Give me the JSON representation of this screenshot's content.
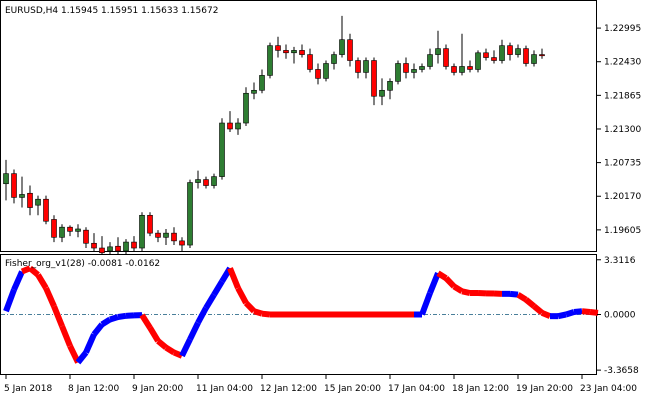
{
  "chart_data": [
    {
      "type": "candlestick",
      "title": "EURUSD,H4  1.15945 1.15951 1.15633 1.15672",
      "symbol": "EURUSD,H4",
      "ohlc_readout": [
        "1.15945",
        "1.15951",
        "1.15633",
        "1.15672"
      ],
      "y_ticks": [
        "1.22995",
        "1.22430",
        "1.21865",
        "1.21300",
        "1.20735",
        "1.20170",
        "1.19605"
      ],
      "ylim": [
        1.1925,
        1.2345
      ],
      "up_color": "#2e7d32",
      "down_color": "#ff0000",
      "candles": [
        [
          1.2038,
          1.2078,
          1.201,
          1.2055
        ],
        [
          1.2055,
          1.2062,
          1.2005,
          1.2015
        ],
        [
          1.2015,
          1.205,
          1.1998,
          1.202
        ],
        [
          1.2022,
          1.2035,
          1.1985,
          1.1998
        ],
        [
          1.2002,
          1.2018,
          1.1985,
          1.2012
        ],
        [
          1.2012,
          1.2018,
          1.197,
          1.1975
        ],
        [
          1.1978,
          1.1985,
          1.194,
          1.1948
        ],
        [
          1.1948,
          1.197,
          1.194,
          1.1965
        ],
        [
          1.1965,
          1.1968,
          1.195,
          1.1958
        ],
        [
          1.1958,
          1.197,
          1.1948,
          1.1962
        ],
        [
          1.196,
          1.1965,
          1.193,
          1.1938
        ],
        [
          1.1938,
          1.1955,
          1.1925,
          1.193
        ],
        [
          1.193,
          1.195,
          1.192,
          1.1922
        ],
        [
          1.1925,
          1.194,
          1.1915,
          1.1932
        ],
        [
          1.1933,
          1.1948,
          1.1918,
          1.1925
        ],
        [
          1.1925,
          1.1945,
          1.1912,
          1.194
        ],
        [
          1.194,
          1.195,
          1.1925,
          1.193
        ],
        [
          1.193,
          1.199,
          1.1925,
          1.1985
        ],
        [
          1.1985,
          1.199,
          1.195,
          1.1955
        ],
        [
          1.1955,
          1.196,
          1.194,
          1.1948
        ],
        [
          1.1948,
          1.1962,
          1.1935,
          1.1955
        ],
        [
          1.1955,
          1.1965,
          1.1935,
          1.1942
        ],
        [
          1.1942,
          1.1948,
          1.1925,
          1.1935
        ],
        [
          1.1935,
          1.2045,
          1.193,
          1.204
        ],
        [
          1.204,
          1.206,
          1.203,
          1.2045
        ],
        [
          1.2045,
          1.205,
          1.203,
          1.2035
        ],
        [
          1.2035,
          1.2055,
          1.203,
          1.205
        ],
        [
          1.205,
          1.2148,
          1.2045,
          1.214
        ],
        [
          1.214,
          1.216,
          1.2125,
          1.213
        ],
        [
          1.213,
          1.2148,
          1.212,
          1.214
        ],
        [
          1.214,
          1.22,
          1.2135,
          1.219
        ],
        [
          1.219,
          1.2208,
          1.218,
          1.2195
        ],
        [
          1.2195,
          1.223,
          1.219,
          1.222
        ],
        [
          1.222,
          1.2275,
          1.2215,
          1.227
        ],
        [
          1.227,
          1.2285,
          1.225,
          1.2262
        ],
        [
          1.2262,
          1.2272,
          1.2248,
          1.2258
        ],
        [
          1.2258,
          1.2268,
          1.224,
          1.2262
        ],
        [
          1.2262,
          1.2272,
          1.225,
          1.2255
        ],
        [
          1.2255,
          1.2265,
          1.2225,
          1.223
        ],
        [
          1.223,
          1.224,
          1.2205,
          1.2215
        ],
        [
          1.2215,
          1.2245,
          1.221,
          1.224
        ],
        [
          1.224,
          1.226,
          1.223,
          1.2255
        ],
        [
          1.2255,
          1.232,
          1.225,
          1.228
        ],
        [
          1.228,
          1.229,
          1.2235,
          1.2245
        ],
        [
          1.2245,
          1.225,
          1.2215,
          1.2225
        ],
        [
          1.2225,
          1.225,
          1.2215,
          1.2245
        ],
        [
          1.2245,
          1.225,
          1.217,
          1.2185
        ],
        [
          1.2185,
          1.2215,
          1.217,
          1.2195
        ],
        [
          1.2195,
          1.2215,
          1.218,
          1.221
        ],
        [
          1.221,
          1.2245,
          1.2205,
          1.224
        ],
        [
          1.224,
          1.225,
          1.2215,
          1.2225
        ],
        [
          1.2225,
          1.224,
          1.2215,
          1.223
        ],
        [
          1.223,
          1.224,
          1.2225,
          1.2235
        ],
        [
          1.2235,
          1.2265,
          1.223,
          1.2255
        ],
        [
          1.2255,
          1.2295,
          1.224,
          1.2265
        ],
        [
          1.2265,
          1.2272,
          1.223,
          1.2235
        ],
        [
          1.2235,
          1.224,
          1.222,
          1.2225
        ],
        [
          1.2225,
          1.229,
          1.222,
          1.2235
        ],
        [
          1.2235,
          1.2245,
          1.2225,
          1.223
        ],
        [
          1.223,
          1.2262,
          1.2225,
          1.2258
        ],
        [
          1.2258,
          1.2265,
          1.2245,
          1.225
        ],
        [
          1.225,
          1.2262,
          1.224,
          1.2245
        ],
        [
          1.2245,
          1.228,
          1.224,
          1.227
        ],
        [
          1.227,
          1.2275,
          1.2245,
          1.2255
        ],
        [
          1.2255,
          1.2272,
          1.225,
          1.2265
        ],
        [
          1.2265,
          1.227,
          1.2235,
          1.224
        ],
        [
          1.224,
          1.2262,
          1.2235,
          1.2255
        ],
        [
          1.2255,
          1.2265,
          1.2248,
          1.2253
        ]
      ]
    },
    {
      "type": "line",
      "title": "Fisher_org_v1(28) -0.0081 -0.0162",
      "indicator": "Fisher_org_v1(28)",
      "readout_values": [
        "-0.0081",
        "-0.0162"
      ],
      "y_ticks": [
        "3.3116",
        "0.0000",
        "-3.3658"
      ],
      "ylim": [
        -3.6,
        3.6
      ],
      "level_line": 0.0,
      "up_color": "#0000ff",
      "down_color": "#ff0000",
      "x_labels": [
        "5 Jan 2018",
        "8 Jan 12:00",
        "9 Jan 20:00",
        "11 Jan 04:00",
        "12 Jan 12:00",
        "15 Jan 20:00",
        "17 Jan 04:00",
        "18 Jan 12:00",
        "19 Jan 20:00",
        "23 Jan 04:00"
      ],
      "x_label_bar_index": [
        0,
        8,
        16,
        24,
        32,
        40,
        48,
        56,
        64,
        72
      ],
      "series": [
        {
          "values": [
            0.2,
            1.5,
            2.6,
            2.8,
            2.4,
            1.6,
            0.5,
            -0.7,
            -1.9,
            -2.9,
            -2.3,
            -1.2,
            -0.6,
            -0.3,
            -0.15,
            -0.08,
            -0.05,
            -0.04,
            -0.8,
            -1.6,
            -2.0,
            -2.3,
            -2.5,
            -1.5,
            -0.5,
            0.4,
            1.2,
            2.0,
            2.8,
            1.6,
            0.7,
            0.2,
            0.05,
            0.0,
            0.0,
            0.0,
            0.0,
            0.0,
            0.0,
            0.0,
            0.0,
            0.0,
            0.0,
            0.0,
            0.0,
            0.0,
            0.0,
            0.0,
            0.0,
            0.0,
            0.0,
            0.0,
            0.0,
            1.3,
            2.5,
            2.2,
            1.7,
            1.4,
            1.3,
            1.3,
            1.28,
            1.27,
            1.25,
            1.25,
            1.2,
            0.9,
            0.5,
            0.1,
            -0.1,
            -0.1,
            0.0,
            0.15,
            0.2,
            0.15,
            0.1
          ],
          "direction": [
            "up",
            "up",
            "up",
            "down",
            "down",
            "down",
            "down",
            "down",
            "down",
            "down",
            "up",
            "up",
            "up",
            "up",
            "up",
            "up",
            "up",
            "up",
            "down",
            "down",
            "down",
            "down",
            "down",
            "up",
            "up",
            "up",
            "up",
            "up",
            "up",
            "down",
            "down",
            "down",
            "down",
            "down",
            "down",
            "down",
            "down",
            "down",
            "down",
            "down",
            "down",
            "down",
            "down",
            "down",
            "down",
            "down",
            "down",
            "down",
            "down",
            "down",
            "down",
            "down",
            "up",
            "up",
            "up",
            "down",
            "down",
            "down",
            "down",
            "down",
            "down",
            "down",
            "down",
            "up",
            "up",
            "down",
            "down",
            "down",
            "down",
            "up",
            "up",
            "up",
            "up",
            "down",
            "down"
          ]
        }
      ]
    }
  ]
}
